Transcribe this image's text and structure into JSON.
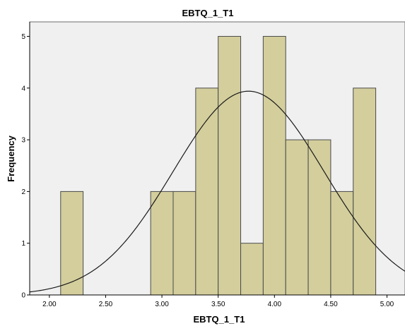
{
  "chart_data": {
    "type": "bar",
    "title": "EBTQ_1_T1",
    "xlabel": "EBTQ_1_T1",
    "ylabel": "Frequency",
    "xlim": [
      1.825,
      5.16
    ],
    "ylim": [
      0,
      5.28
    ],
    "x_ticks": [
      "2.00",
      "2.50",
      "3.00",
      "3.50",
      "4.00",
      "4.50",
      "5.00"
    ],
    "y_ticks": [
      "0",
      "1",
      "2",
      "3",
      "4",
      "5"
    ],
    "bins": [
      {
        "x0": 2.1,
        "x1": 2.3,
        "count": 2
      },
      {
        "x0": 2.9,
        "x1": 3.1,
        "count": 2
      },
      {
        "x0": 3.1,
        "x1": 3.3,
        "count": 2
      },
      {
        "x0": 3.3,
        "x1": 3.5,
        "count": 4
      },
      {
        "x0": 3.5,
        "x1": 3.7,
        "count": 5
      },
      {
        "x0": 3.7,
        "x1": 3.9,
        "count": 1
      },
      {
        "x0": 3.9,
        "x1": 4.1,
        "count": 5
      },
      {
        "x0": 4.1,
        "x1": 4.3,
        "count": 3
      },
      {
        "x0": 4.3,
        "x1": 4.5,
        "count": 3
      },
      {
        "x0": 4.5,
        "x1": 4.7,
        "count": 2
      },
      {
        "x0": 4.7,
        "x1": 4.9,
        "count": 4
      }
    ],
    "normal_curve": {
      "mean": 3.77,
      "peak": 3.94,
      "sd": 0.67
    },
    "colors": {
      "bar_fill": "#d3ce9c",
      "bar_stroke": "#4a4a4a",
      "plot_bg": "#f0f0f0",
      "curve": "#1a1a1a"
    }
  }
}
